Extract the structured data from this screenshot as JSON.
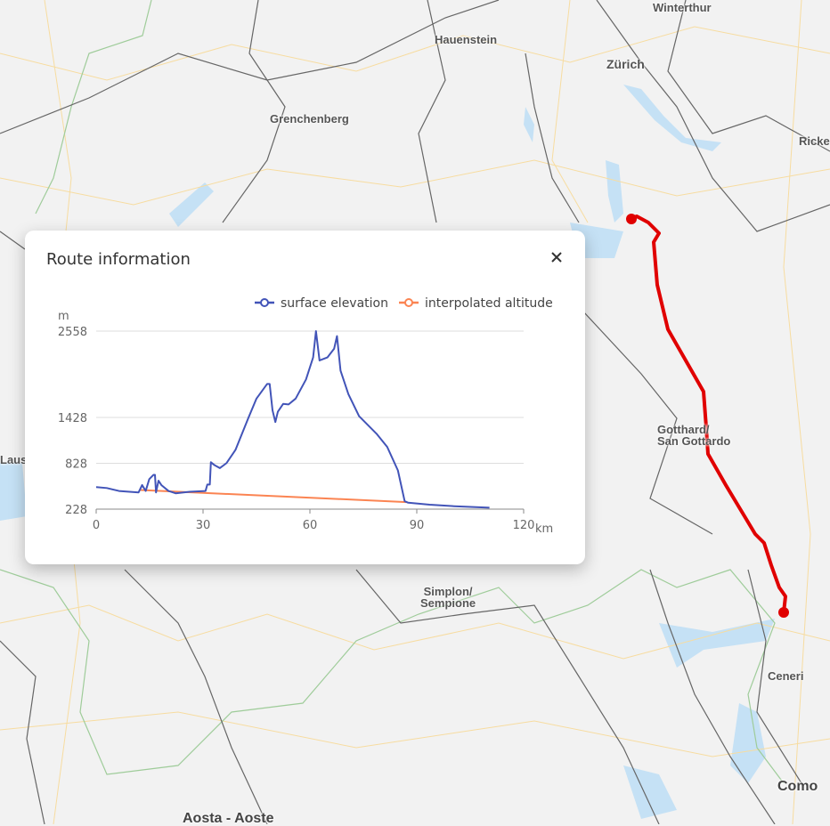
{
  "map": {
    "labels": [
      "Winterthur",
      "Hauenstein",
      "Zürich",
      "Grenchenberg",
      "Ricke",
      "Gotthard/\nSan Gottardo",
      "Simplon/\nSempione",
      "Ceneri",
      "Como",
      "Laus",
      "Aosta - Aoste"
    ],
    "route_color": "#e00000"
  },
  "panel": {
    "title": "Route information",
    "close_icon": "close-icon"
  },
  "chart_data": {
    "type": "line",
    "xlabel": "km",
    "ylabel": "m",
    "xlim": [
      0,
      120
    ],
    "ylim": [
      228,
      2558
    ],
    "xticks": [
      0,
      30,
      60,
      90,
      120
    ],
    "yticks": [
      228,
      828,
      1428,
      2558
    ],
    "grid": true,
    "legend_placement": "top-right",
    "series": [
      {
        "name": "surface elevation",
        "color": "#4254b8",
        "points": [
          [
            0,
            516
          ],
          [
            3,
            504
          ],
          [
            6.4,
            466
          ],
          [
            11.9,
            447
          ],
          [
            12.9,
            543
          ],
          [
            13.9,
            466
          ],
          [
            14.9,
            620
          ],
          [
            16.1,
            677
          ],
          [
            16.5,
            677
          ],
          [
            16.8,
            447
          ],
          [
            17.5,
            600
          ],
          [
            18.3,
            543
          ],
          [
            20.3,
            466
          ],
          [
            22.3,
            435
          ],
          [
            26.2,
            455
          ],
          [
            30.7,
            466
          ],
          [
            31.2,
            550
          ],
          [
            31.9,
            550
          ],
          [
            32.2,
            842
          ],
          [
            33.2,
            804
          ],
          [
            34.7,
            765
          ],
          [
            36.6,
            831
          ],
          [
            39.1,
            1003
          ],
          [
            42.6,
            1407
          ],
          [
            45.0,
            1675
          ],
          [
            48.0,
            1867
          ],
          [
            48.7,
            1867
          ],
          [
            49.5,
            1522
          ],
          [
            50.3,
            1368
          ],
          [
            51.0,
            1503
          ],
          [
            52.5,
            1606
          ],
          [
            54.0,
            1598
          ],
          [
            56.0,
            1675
          ],
          [
            58.9,
            1925
          ],
          [
            60.9,
            2213
          ],
          [
            61.7,
            2558
          ],
          [
            62.7,
            2174
          ],
          [
            64.9,
            2213
          ],
          [
            66.8,
            2328
          ],
          [
            67.6,
            2493
          ],
          [
            68.6,
            2040
          ],
          [
            70.8,
            1733
          ],
          [
            73.8,
            1445
          ],
          [
            78.7,
            1215
          ],
          [
            81.7,
            1042
          ],
          [
            84.7,
            735
          ],
          [
            86.6,
            332
          ],
          [
            87.6,
            312
          ],
          [
            93.6,
            286
          ],
          [
            100.5,
            266
          ],
          [
            110.4,
            247
          ]
        ]
      },
      {
        "name": "interpolated altitude",
        "color": "#fb8452",
        "points": [
          [
            12.4,
            478
          ],
          [
            87.1,
            320
          ]
        ]
      }
    ]
  }
}
